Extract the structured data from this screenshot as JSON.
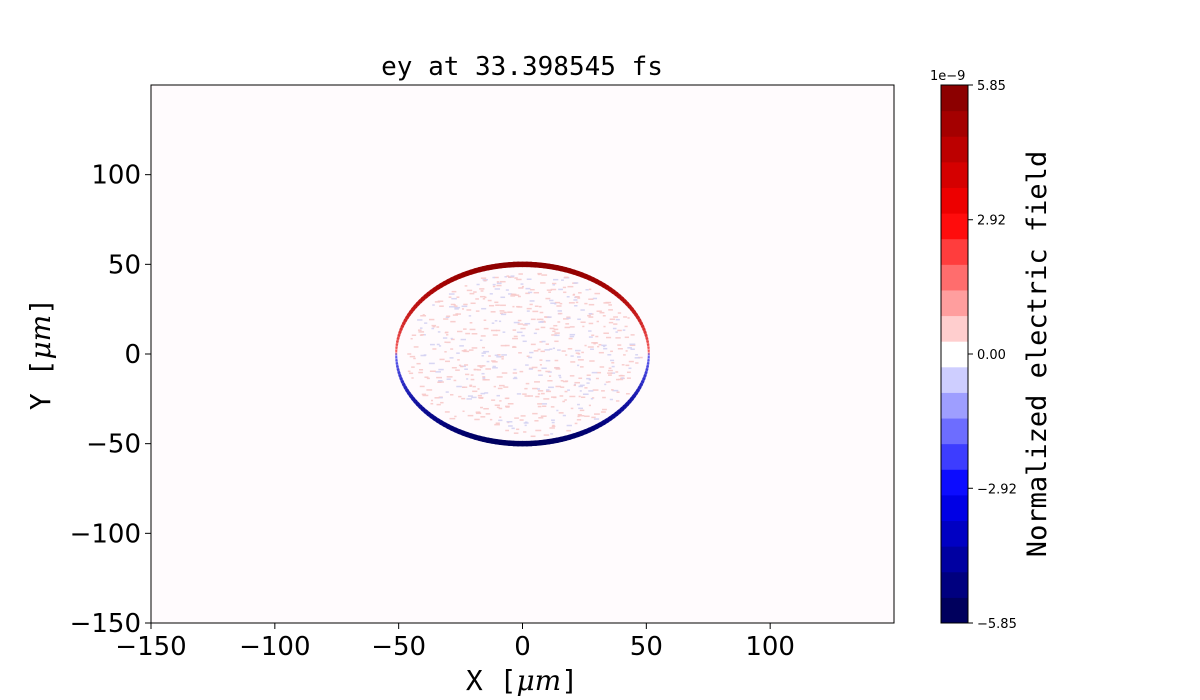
{
  "chart_data": {
    "type": "heatmap",
    "title": "ey at 33.398545 fs",
    "xlabel_text": "X",
    "xlabel_unit": "μm",
    "ylabel_text": "Y",
    "ylabel_unit": "μm",
    "xlim": [
      -150,
      150
    ],
    "ylim": [
      -150,
      150
    ],
    "x_ticks": [
      -150,
      -100,
      -50,
      0,
      50,
      100
    ],
    "y_ticks": [
      -150,
      -100,
      -50,
      0,
      50,
      100
    ],
    "x_tick_labels": [
      "−150",
      "−100",
      "−50",
      "0",
      "50",
      "100"
    ],
    "y_tick_labels": [
      "−150",
      "−100",
      "−50",
      "0",
      "50",
      "100"
    ],
    "field_ring": {
      "center": [
        0,
        0
      ],
      "radius_x": 51,
      "radius_y": 50,
      "upper_half_sign": "positive",
      "lower_half_sign": "negative"
    },
    "colorbar": {
      "label": "Normalized electric field",
      "exponent_label": "1e−9",
      "vmin": -5.85,
      "vmax": 5.85,
      "levels": 21,
      "ticks": [
        5.85,
        2.92,
        0.0,
        -2.92,
        -5.85
      ],
      "tick_labels": [
        "5.85",
        "2.92",
        "0.00",
        "−2.92",
        "−5.85"
      ],
      "colormap": "seismic",
      "colormap_stops": [
        "#00004c",
        "#0000ff",
        "#ffffff",
        "#ff0000",
        "#800000"
      ]
    },
    "grid": false
  }
}
